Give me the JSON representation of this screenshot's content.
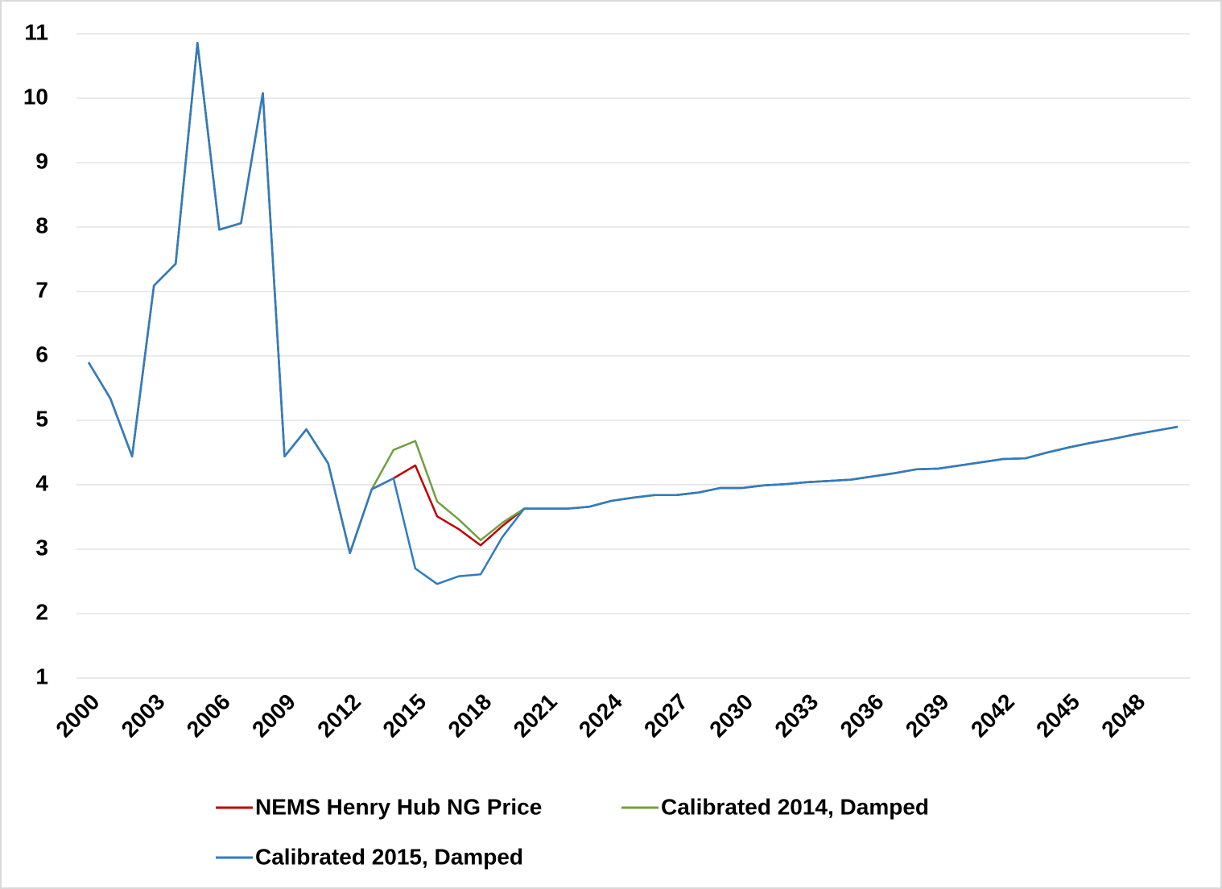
{
  "chart_data": {
    "type": "line",
    "categories": [
      "2000",
      null,
      null,
      "2003",
      null,
      null,
      "2006",
      null,
      null,
      "2009",
      null,
      null,
      "2012",
      null,
      null,
      "2015",
      null,
      null,
      "2018",
      null,
      null,
      "2021",
      null,
      null,
      "2024",
      null,
      null,
      "2027",
      null,
      null,
      "2030",
      null,
      null,
      "2033",
      null,
      null,
      "2036",
      null,
      null,
      "2039",
      null,
      null,
      "2042",
      null,
      null,
      "2045",
      null,
      null,
      "2048",
      null,
      null
    ],
    "series": [
      {
        "name": "NEMS Henry Hub NG Price",
        "color": "#c00000",
        "values": [
          5.9,
          5.34,
          4.44,
          7.09,
          7.43,
          10.86,
          7.96,
          8.06,
          10.08,
          4.44,
          4.86,
          4.33,
          2.94,
          3.93,
          4.1,
          4.3,
          3.51,
          3.31,
          3.06,
          3.36,
          3.63,
          3.63,
          3.63,
          3.66,
          3.75,
          3.8,
          3.84,
          3.84,
          3.88,
          3.95,
          3.95,
          3.99,
          4.01,
          4.04,
          4.06,
          4.08,
          4.13,
          4.18,
          4.24,
          4.25,
          4.3,
          4.35,
          4.4,
          4.41,
          4.5,
          4.58,
          4.65,
          4.71,
          4.78,
          4.84,
          4.9
        ]
      },
      {
        "name": "Calibrated 2014, Damped",
        "color": "#70a040",
        "values": [
          5.9,
          5.34,
          4.44,
          7.09,
          7.43,
          10.86,
          7.96,
          8.06,
          10.08,
          4.44,
          4.86,
          4.33,
          2.94,
          3.93,
          4.54,
          4.68,
          3.74,
          3.46,
          3.14,
          3.41,
          3.63,
          3.63,
          3.63,
          3.66,
          3.75,
          3.8,
          3.84,
          3.84,
          3.88,
          3.95,
          3.95,
          3.99,
          4.01,
          4.04,
          4.06,
          4.08,
          4.13,
          4.18,
          4.24,
          4.25,
          4.3,
          4.35,
          4.4,
          4.41,
          4.5,
          4.58,
          4.65,
          4.71,
          4.78,
          4.84,
          4.9
        ]
      },
      {
        "name": "Calibrated 2015, Damped",
        "color": "#2e7cc4",
        "values": [
          5.9,
          5.34,
          4.44,
          7.09,
          7.43,
          10.86,
          7.96,
          8.06,
          10.08,
          4.44,
          4.86,
          4.33,
          2.94,
          3.93,
          4.1,
          2.7,
          2.46,
          2.58,
          2.61,
          3.19,
          3.63,
          3.63,
          3.63,
          3.66,
          3.75,
          3.8,
          3.84,
          3.84,
          3.88,
          3.95,
          3.95,
          3.99,
          4.01,
          4.04,
          4.06,
          4.08,
          4.13,
          4.18,
          4.24,
          4.25,
          4.3,
          4.35,
          4.4,
          4.41,
          4.5,
          4.58,
          4.65,
          4.71,
          4.78,
          4.84,
          4.9
        ]
      }
    ],
    "ylim": [
      1,
      11
    ],
    "yticks": [
      1,
      2,
      3,
      4,
      5,
      6,
      7,
      8,
      9,
      10,
      11
    ],
    "grid": true,
    "legend": "bottom"
  }
}
